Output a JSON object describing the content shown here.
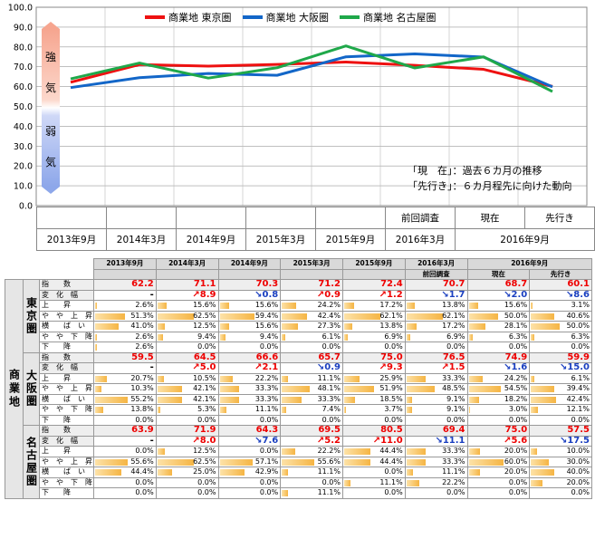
{
  "chart_data": {
    "type": "line",
    "categories": [
      "2013年9月",
      "2014年3月",
      "2014年9月",
      "2015年3月",
      "2015年9月",
      "2016年3月 前回調査",
      "2016年9月 現在",
      "2016年9月 先行き"
    ],
    "series": [
      {
        "name": "商業地 東京圏",
        "color": "#ee1111",
        "values": [
          62.2,
          71.1,
          70.3,
          71.2,
          72.4,
          70.7,
          68.7,
          60.1
        ]
      },
      {
        "name": "商業地 大阪圏",
        "color": "#1266c8",
        "values": [
          59.5,
          64.5,
          66.6,
          65.7,
          75.0,
          76.5,
          74.9,
          59.9
        ]
      },
      {
        "name": "商業地 名古屋圏",
        "color": "#1fa84a",
        "values": [
          63.9,
          71.9,
          64.3,
          69.5,
          80.5,
          69.4,
          75.0,
          57.5
        ]
      }
    ],
    "ylim": [
      0,
      100
    ],
    "yticks": [
      "0.0",
      "10.0",
      "20.0",
      "30.0",
      "40.0",
      "50.0",
      "60.0",
      "70.0",
      "80.0",
      "90.0",
      "100.0"
    ],
    "grid": true,
    "legend": "top"
  },
  "gauge": {
    "strong": [
      "強",
      "気"
    ],
    "weak": [
      "弱",
      "気"
    ]
  },
  "notes": [
    "「現　在」：過去６カ月の推移",
    "「先行き」：６カ月程先に向けた動向"
  ],
  "xaxis": {
    "top": [
      "",
      "",
      "",
      "",
      "",
      "前回調査",
      "現在",
      "先行き"
    ],
    "bottom": [
      "2013年9月",
      "2014年3月",
      "2014年9月",
      "2015年3月",
      "2015年9月",
      "2016年3月",
      "2016年9月"
    ]
  },
  "table": {
    "group_label": "商業地",
    "headers": [
      "2013年9月",
      "2014年3月",
      "2014年9月",
      "2015年3月",
      "2015年9月",
      "2016年3月",
      "2016年9月"
    ],
    "subheaders": [
      "",
      "",
      "",
      "",
      "",
      "前回調査",
      "現在",
      "先行き"
    ],
    "row_labels": [
      "指　　数",
      "変　化　幅",
      "上　　昇",
      "や　や　上　昇",
      "横　　ば　い",
      "や　や　下　降",
      "下　　降"
    ],
    "regions": [
      {
        "name": "東京圏",
        "index": [
          "62.2",
          "71.1",
          "70.3",
          "71.2",
          "72.4",
          "70.7",
          "68.7",
          "60.1"
        ],
        "change": [
          "-",
          "↗8.9",
          "↘0.8",
          "↗0.9",
          "↗1.2",
          "↘1.7",
          "↘2.0",
          "↘8.6"
        ],
        "change_dir": [
          "",
          "up",
          "down",
          "up",
          "up",
          "down",
          "down",
          "down"
        ],
        "rows": [
          [
            "2.6%",
            "15.6%",
            "15.6%",
            "24.2%",
            "17.2%",
            "13.8%",
            "15.6%",
            "3.1%"
          ],
          [
            "51.3%",
            "62.5%",
            "59.4%",
            "42.4%",
            "62.1%",
            "62.1%",
            "50.0%",
            "40.6%"
          ],
          [
            "41.0%",
            "12.5%",
            "15.6%",
            "27.3%",
            "13.8%",
            "17.2%",
            "28.1%",
            "50.0%"
          ],
          [
            "2.6%",
            "9.4%",
            "9.4%",
            "6.1%",
            "6.9%",
            "6.9%",
            "6.3%",
            "6.3%"
          ],
          [
            "2.6%",
            "0.0%",
            "0.0%",
            "0.0%",
            "0.0%",
            "0.0%",
            "0.0%",
            "0.0%"
          ]
        ]
      },
      {
        "name": "大阪圏",
        "index": [
          "59.5",
          "64.5",
          "66.6",
          "65.7",
          "75.0",
          "76.5",
          "74.9",
          "59.9"
        ],
        "change": [
          "-",
          "↗5.0",
          "↗2.1",
          "↘0.9",
          "↗9.3",
          "↗1.5",
          "↘1.6",
          "↘15.0"
        ],
        "change_dir": [
          "",
          "up",
          "up",
          "down",
          "up",
          "up",
          "down",
          "down"
        ],
        "rows": [
          [
            "20.7%",
            "10.5%",
            "22.2%",
            "11.1%",
            "25.9%",
            "33.3%",
            "24.2%",
            "6.1%"
          ],
          [
            "10.3%",
            "42.1%",
            "33.3%",
            "48.1%",
            "51.9%",
            "48.5%",
            "54.5%",
            "39.4%"
          ],
          [
            "55.2%",
            "42.1%",
            "33.3%",
            "33.3%",
            "18.5%",
            "9.1%",
            "18.2%",
            "42.4%"
          ],
          [
            "13.8%",
            "5.3%",
            "11.1%",
            "7.4%",
            "3.7%",
            "9.1%",
            "3.0%",
            "12.1%"
          ],
          [
            "0.0%",
            "0.0%",
            "0.0%",
            "0.0%",
            "0.0%",
            "0.0%",
            "0.0%",
            "0.0%"
          ]
        ]
      },
      {
        "name": "名古屋圏",
        "index": [
          "63.9",
          "71.9",
          "64.3",
          "69.5",
          "80.5",
          "69.4",
          "75.0",
          "57.5"
        ],
        "change": [
          "-",
          "↗8.0",
          "↘7.6",
          "↗5.2",
          "↗11.0",
          "↘11.1",
          "↗5.6",
          "↘17.5"
        ],
        "change_dir": [
          "",
          "up",
          "down",
          "up",
          "up",
          "down",
          "up",
          "down"
        ],
        "rows": [
          [
            "0.0%",
            "12.5%",
            "0.0%",
            "22.2%",
            "44.4%",
            "33.3%",
            "20.0%",
            "10.0%"
          ],
          [
            "55.6%",
            "62.5%",
            "57.1%",
            "55.6%",
            "44.4%",
            "33.3%",
            "60.0%",
            "30.0%"
          ],
          [
            "44.4%",
            "25.0%",
            "42.9%",
            "11.1%",
            "0.0%",
            "11.1%",
            "20.0%",
            "40.0%"
          ],
          [
            "0.0%",
            "0.0%",
            "0.0%",
            "0.0%",
            "11.1%",
            "22.2%",
            "0.0%",
            "20.0%"
          ],
          [
            "0.0%",
            "0.0%",
            "0.0%",
            "11.1%",
            "0.0%",
            "0.0%",
            "0.0%",
            "0.0%"
          ]
        ]
      }
    ]
  }
}
